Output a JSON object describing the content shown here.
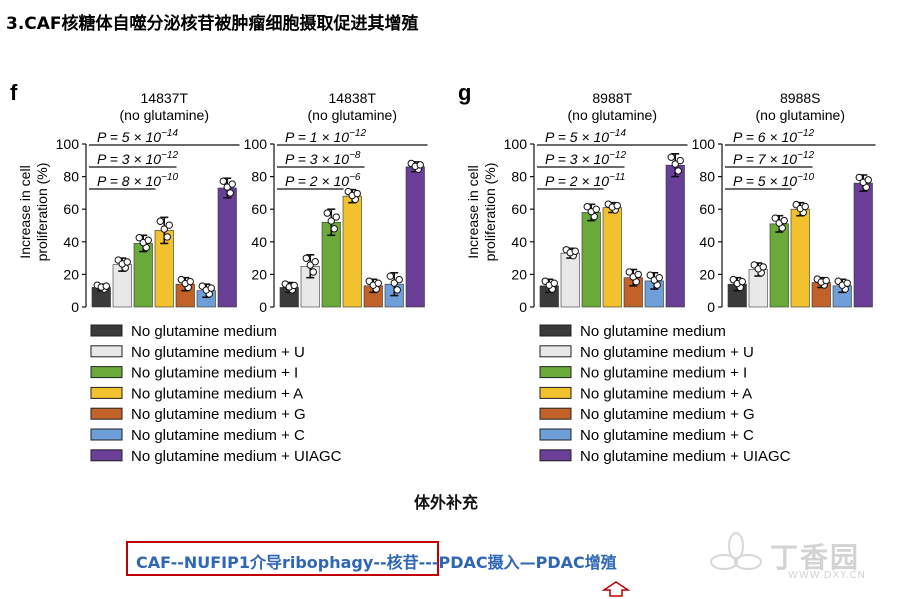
{
  "slide_title": "3.CAF核糖体自噬分泌核苷被肿瘤细胞摄取促进其增殖",
  "panels": [
    {
      "letter": "f",
      "yaxis_label": [
        "Increase in cell",
        "proliferation (%)"
      ],
      "yticks": [
        "0",
        "20",
        "40",
        "60",
        "80",
        "100"
      ]
    },
    {
      "letter": "g",
      "yaxis_label": [
        "Increase in cell",
        "proliferation (%)"
      ],
      "yticks": [
        "0",
        "20",
        "40",
        "60",
        "80",
        "100"
      ]
    }
  ],
  "chart_data": [
    {
      "type": "bar",
      "panel": "f",
      "title_line1": "14837T",
      "title_line2": "(no glutamine)",
      "ylabel": "Increase in cell proliferation (%)",
      "ylim": [
        0,
        100
      ],
      "categories": [
        "No glutamine medium",
        "No glutamine medium + U",
        "No glutamine medium + I",
        "No glutamine medium + A",
        "No glutamine medium + G",
        "No glutamine medium + C",
        "No glutamine medium + UIAGC"
      ],
      "values": [
        12,
        26,
        39,
        47,
        14,
        10,
        73
      ],
      "errors": [
        2,
        4,
        5,
        8,
        4,
        4,
        6
      ],
      "pvalues": [
        {
          "from": 0,
          "to": 6,
          "text": "P = 5 × 10",
          "exp": "−14"
        },
        {
          "from": 0,
          "to": 3,
          "text": "P = 3 × 10",
          "exp": "−12"
        },
        {
          "from": 0,
          "to": 2,
          "text": "P = 8 × 10",
          "exp": "−10"
        }
      ]
    },
    {
      "type": "bar",
      "panel": "f",
      "title_line1": "14838T",
      "title_line2": "(no glutamine)",
      "ylabel": "Increase in cell proliferation (%)",
      "ylim": [
        0,
        100
      ],
      "categories": [
        "No glutamine medium",
        "No glutamine medium + U",
        "No glutamine medium + I",
        "No glutamine medium + A",
        "No glutamine medium + G",
        "No glutamine medium + C",
        "No glutamine medium + UIAGC"
      ],
      "values": [
        12,
        25,
        52,
        68,
        13,
        14,
        86
      ],
      "errors": [
        3,
        7,
        8,
        4,
        4,
        7,
        3
      ],
      "pvalues": [
        {
          "from": 0,
          "to": 6,
          "text": "P = 1 × 10",
          "exp": "−12"
        },
        {
          "from": 0,
          "to": 3,
          "text": "P = 3 × 10",
          "exp": "−8"
        },
        {
          "from": 0,
          "to": 2,
          "text": "P = 2 × 10",
          "exp": "−6"
        }
      ]
    },
    {
      "type": "bar",
      "panel": "g",
      "title_line1": "8988T",
      "title_line2": "(no glutamine)",
      "ylabel": "Increase in cell proliferation (%)",
      "ylim": [
        0,
        100
      ],
      "categories": [
        "No glutamine medium",
        "No glutamine medium + U",
        "No glutamine medium + I",
        "No glutamine medium + A",
        "No glutamine medium + G",
        "No glutamine medium + C",
        "No glutamine medium + UIAGC"
      ],
      "values": [
        13,
        33,
        58,
        61,
        18,
        16,
        87
      ],
      "errors": [
        4,
        3,
        5,
        3,
        5,
        5,
        7
      ],
      "pvalues": [
        {
          "from": 0,
          "to": 6,
          "text": "P = 5 × 10",
          "exp": "−14"
        },
        {
          "from": 0,
          "to": 3,
          "text": "P = 3 × 10",
          "exp": "−12"
        },
        {
          "from": 0,
          "to": 2,
          "text": "P = 2 × 10",
          "exp": "−11"
        }
      ]
    },
    {
      "type": "bar",
      "panel": "g",
      "title_line1": "8988S",
      "title_line2": "(no glutamine)",
      "ylabel": "Increase in cell proliferation (%)",
      "ylim": [
        0,
        100
      ],
      "categories": [
        "No glutamine medium",
        "No glutamine medium + U",
        "No glutamine medium + I",
        "No glutamine medium + A",
        "No glutamine medium + G",
        "No glutamine medium + C",
        "No glutamine medium + UIAGC"
      ],
      "values": [
        14,
        23,
        51,
        60,
        15,
        13,
        76
      ],
      "errors": [
        4,
        4,
        5,
        4,
        3,
        4,
        5
      ],
      "pvalues": [
        {
          "from": 0,
          "to": 6,
          "text": "P = 6 × 10",
          "exp": "−12"
        },
        {
          "from": 0,
          "to": 3,
          "text": "P = 7 × 10",
          "exp": "−12"
        },
        {
          "from": 0,
          "to": 2,
          "text": "P = 5 × 10",
          "exp": "−10"
        }
      ]
    }
  ],
  "legend": [
    {
      "label": "No glutamine medium",
      "color": "#3a3a3a"
    },
    {
      "label": "No glutamine medium + U",
      "color": "#e8e8e8"
    },
    {
      "label": "No glutamine medium + I",
      "color": "#6aaa3a"
    },
    {
      "label": "No glutamine medium + A",
      "color": "#f2c12e"
    },
    {
      "label": "No glutamine medium + G",
      "color": "#c0622a"
    },
    {
      "label": "No glutamine medium + C",
      "color": "#6f9fd8"
    },
    {
      "label": "No glutamine medium + UIAGC",
      "color": "#6a3f97"
    }
  ],
  "supplement_label": "体外补充",
  "flow_caption": "CAF--NUFIP1介导ribophagy--核苷---PDAC摄入—PDAC增殖",
  "watermark": {
    "brand": "丁香园",
    "url": "WWW.DXY.CN"
  },
  "colors": {
    "title_text": "#000000",
    "caption_blue": "#2f67b6",
    "box_red": "#c00000",
    "arrow_red": "#c00000"
  }
}
